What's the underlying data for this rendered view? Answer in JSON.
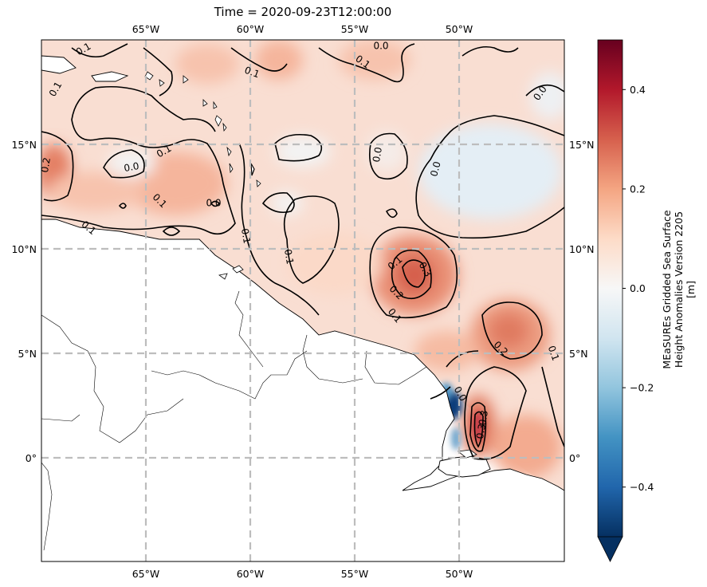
{
  "title": "Time = 2020-09-23T12:00:00",
  "map": {
    "lon_ticks_top": [
      "65°W",
      "60°W",
      "55°W",
      "50°W"
    ],
    "lon_ticks_bottom": [
      "65°W",
      "60°W",
      "55°W",
      "50°W"
    ],
    "lon_values": [
      -65,
      -60,
      -55,
      -50
    ],
    "lat_ticks_left": [
      "15°N",
      "10°N",
      "5°N",
      "0°"
    ],
    "lat_ticks_right": [
      "15°N",
      "10°N",
      "5°N",
      "0°"
    ],
    "lat_values": [
      15,
      10,
      5,
      0
    ],
    "extent": {
      "lon": [
        -70,
        -45
      ],
      "lat": [
        -5,
        20
      ]
    },
    "gridline_color": "#bdbdbd",
    "contour_labels": [
      "0.1",
      "0.1",
      "0.0",
      "0.1",
      "0.1",
      "0.0",
      "0.1",
      "0.2",
      "0.0",
      "0.1",
      "0.1",
      "0.1",
      "0.1",
      "0.0",
      "0.0",
      "0.0",
      "0.3",
      "0.2",
      "0.1",
      "0.1",
      "0.2",
      "0.1",
      "0.0",
      "0.3",
      "0.3"
    ]
  },
  "colorbar": {
    "label_line1": "MEaSUREs Gridded Sea Surface",
    "label_line2": "Height Anomalies Version 2205",
    "label_line3": "[m]",
    "ticks": [
      "0.4",
      "0.2",
      "0.0",
      "−0.2",
      "−0.4"
    ],
    "tick_values": [
      0.4,
      0.2,
      0.0,
      -0.2,
      -0.4
    ],
    "range": [
      -0.5,
      0.5
    ],
    "extend": "min",
    "colormap": "RdBu_r",
    "colors": [
      "#053061",
      "#2166ac",
      "#4393c3",
      "#92c5de",
      "#d1e5f0",
      "#f7f7f7",
      "#fddbc7",
      "#f4a582",
      "#d6604d",
      "#b2182b",
      "#67001f"
    ]
  }
}
